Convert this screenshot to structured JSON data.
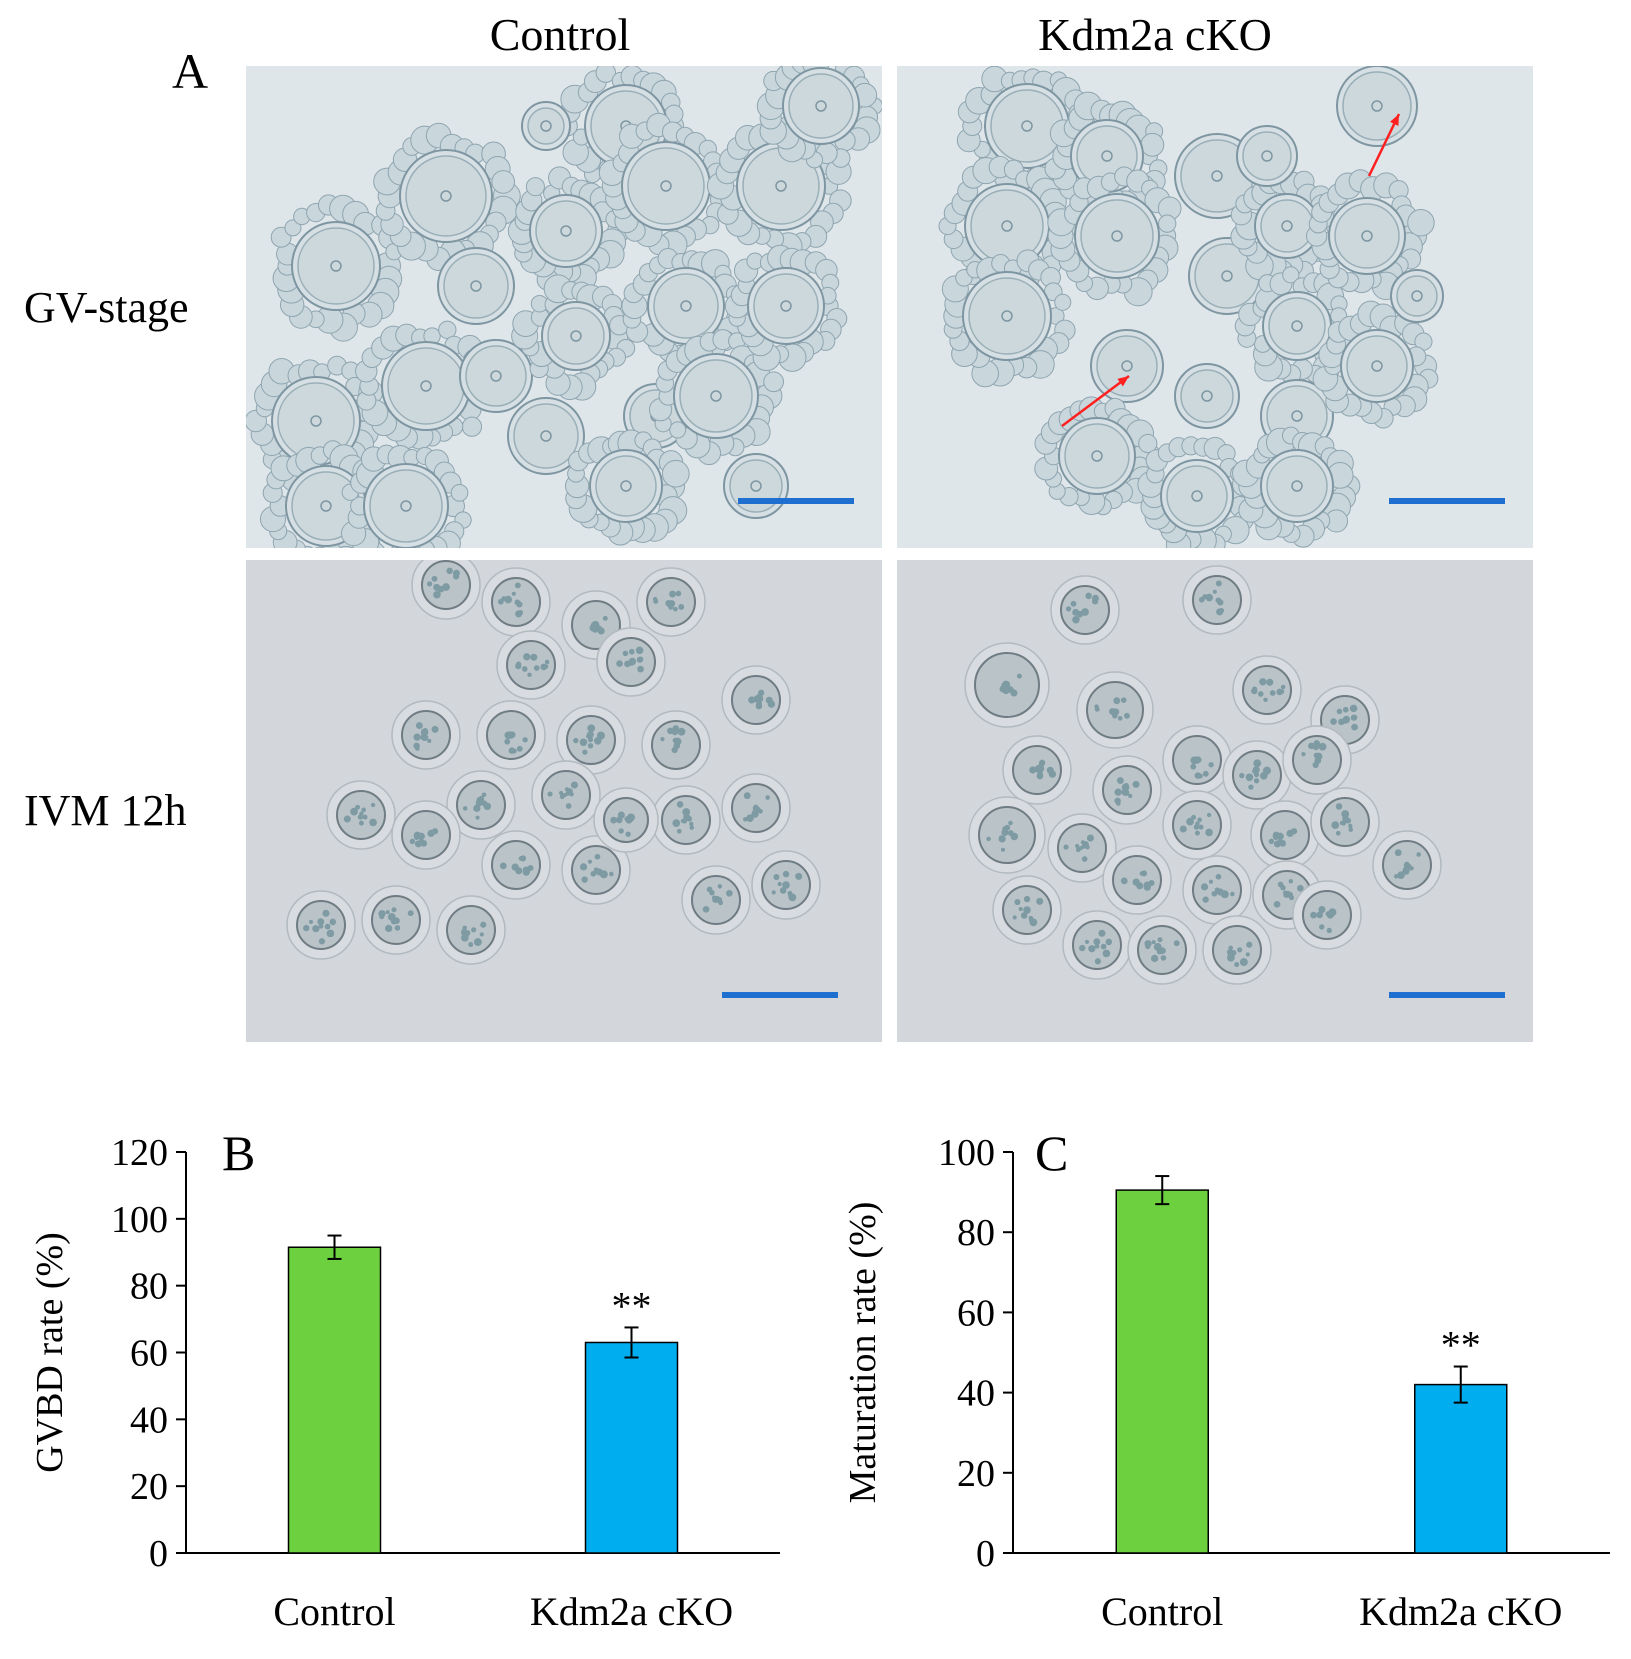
{
  "figure": {
    "panel_a": {
      "letter": "A",
      "columns": [
        "Control",
        "Kdm2a cKO"
      ],
      "rows": [
        "GV-stage",
        "IVM 12h"
      ]
    }
  },
  "colors": {
    "control_bar": "#6dd13f",
    "cko_bar": "#00aeef",
    "scale_bar": "#1f6fd1",
    "arrow": "#ff2020",
    "gv_background": "#dfe6ea",
    "ivm_background": "#d3d7dc"
  },
  "chart_data": [
    {
      "panel": "B",
      "type": "bar",
      "categories": [
        "Control",
        "Kdm2a cKO"
      ],
      "values": [
        91.5,
        63
      ],
      "errors": [
        3.5,
        4.5
      ],
      "significance": [
        "",
        "**"
      ],
      "ylabel": "GVBD rate (%)",
      "ylim": [
        0,
        120
      ],
      "yticks": [
        0,
        20,
        40,
        60,
        80,
        100,
        120
      ],
      "grid": false
    },
    {
      "panel": "C",
      "type": "bar",
      "categories": [
        "Control",
        "Kdm2a cKO"
      ],
      "values": [
        90.5,
        42
      ],
      "errors": [
        3.5,
        4.5
      ],
      "significance": [
        "",
        "**"
      ],
      "ylabel": "Maturation rate (%)",
      "ylim": [
        0,
        100
      ],
      "yticks": [
        0,
        20,
        40,
        60,
        80,
        100
      ],
      "grid": false
    }
  ]
}
